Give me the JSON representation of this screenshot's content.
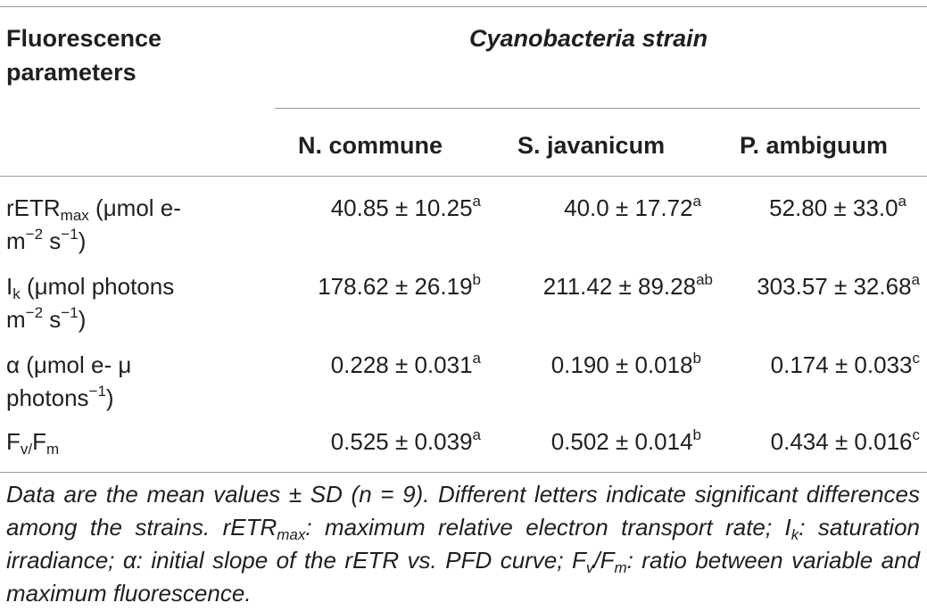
{
  "table": {
    "corner_header": "Fluorescence parameters",
    "group_header": "Cyanobacteria strain",
    "columns": [
      "N. commune",
      "S. javanicum",
      "P. ambiguum"
    ],
    "rows": [
      {
        "param_main": "rETR",
        "param_sub": "max",
        "param_unit": "(μmol e-",
        "param_line2_a": "m",
        "param_line2_sup_a": "−2",
        "param_line2_b": " s",
        "param_line2_sup_b": "−1",
        "param_line2_c": ")",
        "values": [
          {
            "v": "40.85 ± 10.25",
            "sig": "a"
          },
          {
            "v": "40.0 ± 17.72",
            "sig": "a"
          },
          {
            "v": "52.80 ± 33.0",
            "sig": "a"
          }
        ]
      },
      {
        "param_main": "I",
        "param_sub": "k",
        "param_unit": " (μmol photons",
        "param_line2_a": "m",
        "param_line2_sup_a": "−2",
        "param_line2_b": " s",
        "param_line2_sup_b": "−1",
        "param_line2_c": ")",
        "values": [
          {
            "v": "178.62 ± 26.19",
            "sig": "b"
          },
          {
            "v": "211.42 ± 89.28",
            "sig": "ab"
          },
          {
            "v": "303.57 ± 32.68",
            "sig": "a"
          }
        ]
      },
      {
        "param_main": "α (μmol e- μ",
        "param_line2_a": "photons",
        "param_line2_sup_a": "−1",
        "param_line2_c": ")",
        "values": [
          {
            "v": "0.228 ± 0.031",
            "sig": "a"
          },
          {
            "v": "0.190 ± 0.018",
            "sig": "b"
          },
          {
            "v": "0.174 ± 0.033",
            "sig": "c"
          }
        ]
      },
      {
        "param_main": "F",
        "param_sub": "v/",
        "param_main2": "F",
        "param_sub2": "m",
        "values": [
          {
            "v": "0.525 ± 0.039",
            "sig": "a"
          },
          {
            "v": "0.502 ± 0.014",
            "sig": "b"
          },
          {
            "v": "0.434 ± 0.016",
            "sig": "c"
          }
        ]
      }
    ]
  },
  "footnote": {
    "p1": "Data are the mean values ± SD (n = 9). Different letters indicate significant differences among the strains. rETR",
    "p1_sub": "max",
    "p2": ": maximum relative electron transport rate; I",
    "p2_sub": "k",
    "p3": ": saturation irradiance; α: initial slope of the rETR vs. PFD curve; F",
    "p3_sub": "v",
    "p4": "/F",
    "p4_sub": "m",
    "p5": ": ratio between variable and maximum fluorescence."
  }
}
